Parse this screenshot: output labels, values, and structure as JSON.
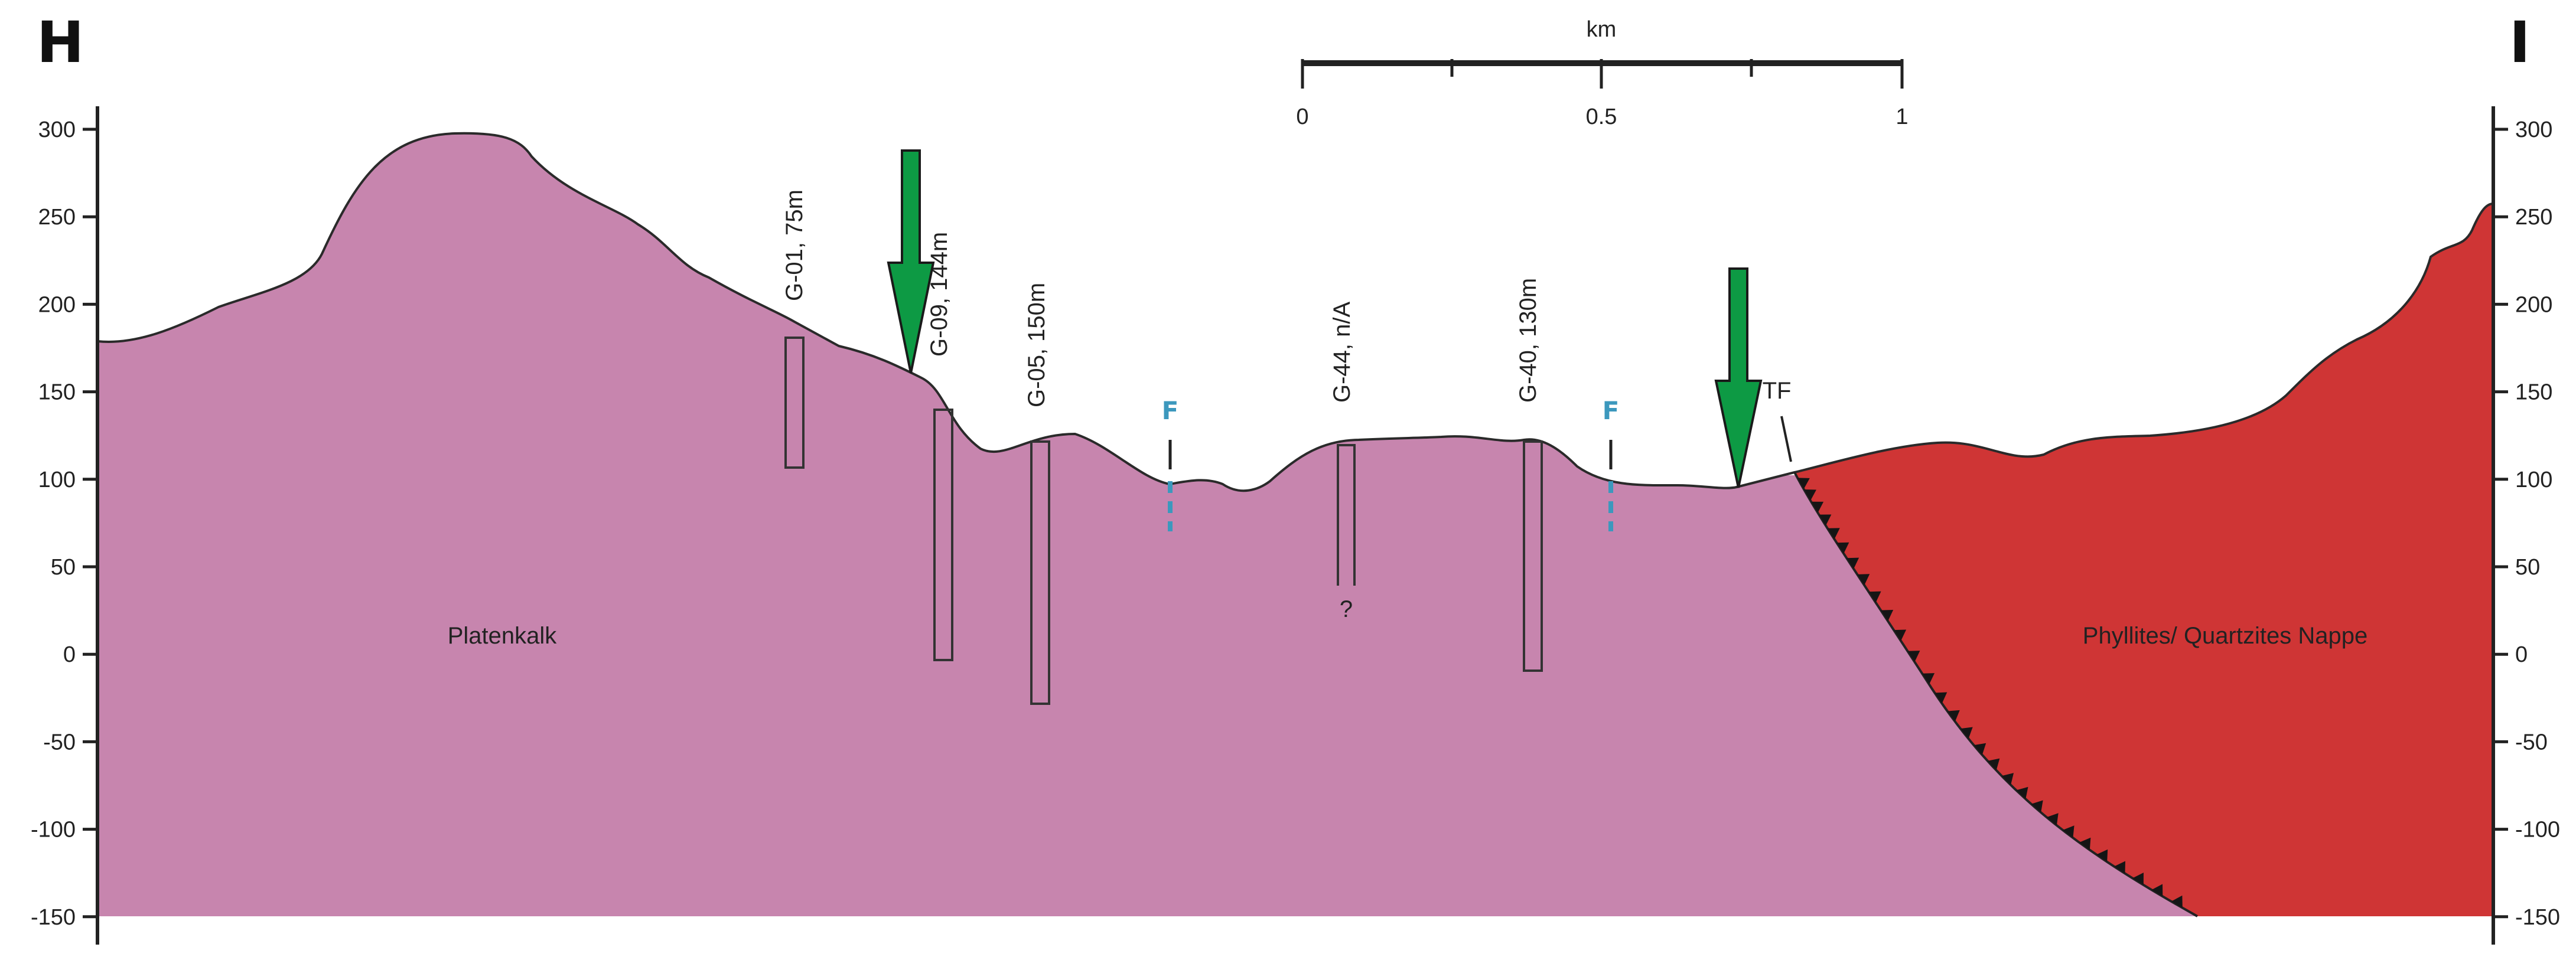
{
  "section": {
    "start_label": "H",
    "end_label": "I"
  },
  "depth_axis": {
    "ticks": [
      "300",
      "250",
      "200",
      "150",
      "100",
      "50",
      "0",
      "-50",
      "-100",
      "-150"
    ]
  },
  "scale_bar": {
    "unit": "km",
    "labels": [
      "0",
      "0.5",
      "1"
    ]
  },
  "units": {
    "left": "Platenkalk",
    "right": "Phyllites/ Quartzites Nappe"
  },
  "wells": [
    {
      "label": "G-01, 75m"
    },
    {
      "label": "G-09, 144m"
    },
    {
      "label": "G-05, 150m"
    },
    {
      "label": "G-44, n/A",
      "note": "?"
    },
    {
      "label": "G-40, 130m"
    }
  ],
  "faults": [
    {
      "label": "F"
    },
    {
      "label": "F"
    },
    {
      "label": "TF"
    }
  ],
  "colors": {
    "platenkalk": "#c785ae",
    "nappe": "#cf3535",
    "arrow": "#0d9a44",
    "fault_marker": "#3c98bd"
  },
  "icons": {
    "arrows": [
      "green-down-arrow-icon",
      "green-down-arrow-icon"
    ]
  }
}
